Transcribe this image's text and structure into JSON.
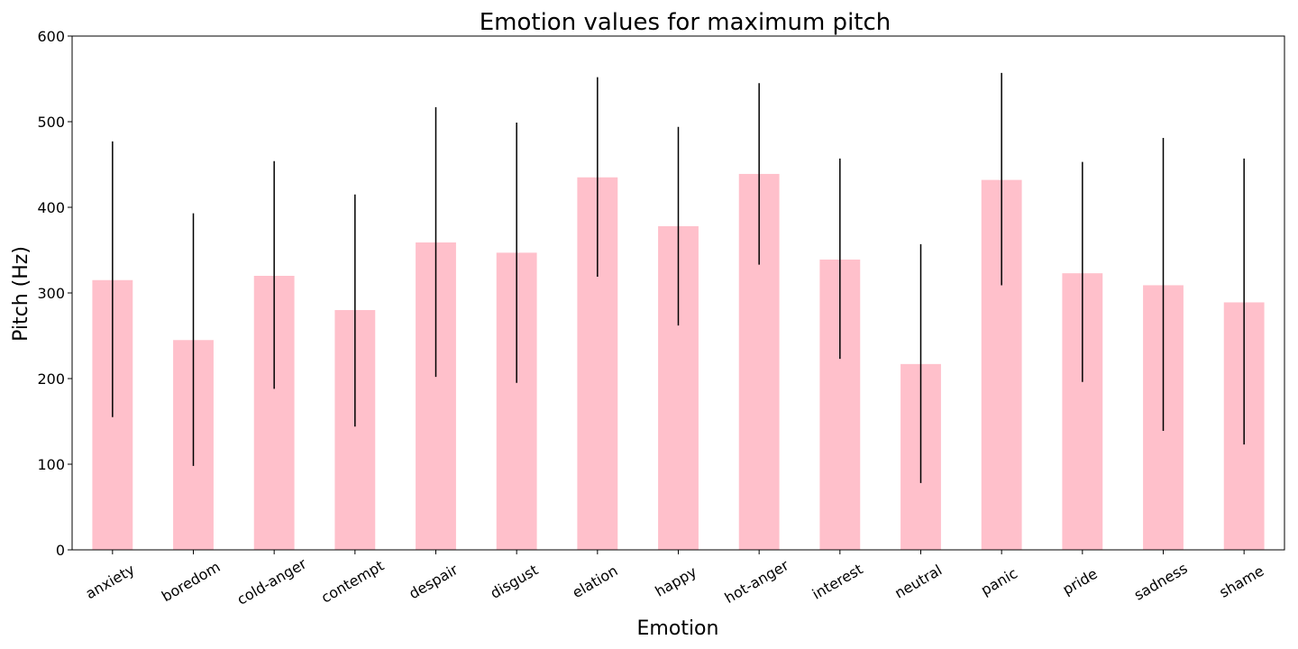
{
  "chart_data": {
    "type": "bar",
    "title": "Emotion values for maximum pitch",
    "xlabel": "Emotion",
    "ylabel": "Pitch (Hz)",
    "ylim": [
      0,
      600
    ],
    "yticks": [
      "0",
      "100",
      "200",
      "300",
      "400",
      "500",
      "600"
    ],
    "categories": [
      "anxiety",
      "boredom",
      "cold-anger",
      "contempt",
      "despair",
      "disgust",
      "elation",
      "happy",
      "hot-anger",
      "interest",
      "neutral",
      "panic",
      "pride",
      "sadness",
      "shame"
    ],
    "values": [
      315,
      245,
      320,
      280,
      359,
      347,
      435,
      378,
      439,
      339,
      217,
      432,
      323,
      309,
      289
    ],
    "error_low": [
      155,
      98,
      188,
      144,
      202,
      195,
      319,
      262,
      333,
      223,
      78,
      309,
      196,
      139,
      123
    ],
    "error_high": [
      477,
      393,
      454,
      415,
      517,
      499,
      552,
      494,
      545,
      457,
      357,
      557,
      453,
      481,
      457
    ],
    "grid": false,
    "legend": "none",
    "bar_color": "#ffc0cb",
    "error_color": "#000000"
  }
}
